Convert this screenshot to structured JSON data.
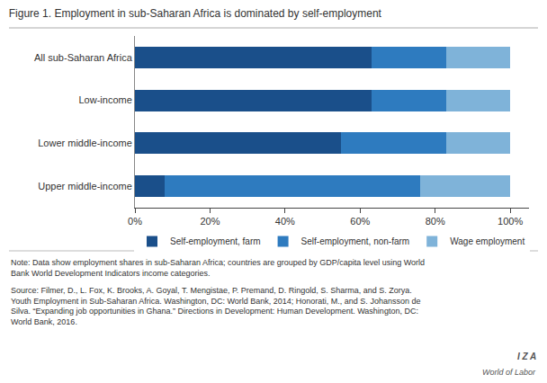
{
  "chart_data": {
    "type": "bar",
    "orientation": "horizontal",
    "stacked": true,
    "title": "Figure 1. Employment in sub-Saharan Africa is dominated by self-employment",
    "categories": [
      "All sub-Saharan Africa",
      "Low-income",
      "Lower middle-income",
      "Upper middle-income"
    ],
    "series": [
      {
        "name": "Self-employment, farm",
        "color": "#1a4f8a",
        "values": [
          63,
          63,
          55,
          8
        ]
      },
      {
        "name": "Self-employment, non-farm",
        "color": "#2e7bbf",
        "values": [
          20,
          20,
          28,
          68
        ]
      },
      {
        "name": "Wage employment",
        "color": "#7fb3d9",
        "values": [
          17,
          17,
          17,
          24
        ]
      }
    ],
    "xlim": [
      0,
      105
    ],
    "xticks": [
      {
        "value": 0,
        "label": "0%"
      },
      {
        "value": 20,
        "label": "20%"
      },
      {
        "value": 40,
        "label": "40%"
      },
      {
        "value": 60,
        "label": "60%"
      },
      {
        "value": 80,
        "label": "80%"
      },
      {
        "value": 100,
        "label": "100%"
      }
    ],
    "grid": false,
    "legend": "bottom",
    "annotations": [
      "Note: Data show employment shares in sub-Saharan Africa; countries are grouped by GDP/capita level using World\nBank World Development Indicators income categories.",
      "Source: Filmer, D., L. Fox, K. Brooks, A. Goyal, T. Mengistae, P. Premand, D. Ringold, S. Sharma, and S. Zorya.",
      "Youth Employment in Sub-Saharan Africa. Washington, DC: World Bank, 2014; Honorati, M., and S. Johansson de",
      "Silva. “Expanding job opportunities in Ghana.” Directions in Development: Human Development. Washington, DC:",
      "World Bank, 2016.",
      "I Z A",
      "World of Labor"
    ]
  }
}
